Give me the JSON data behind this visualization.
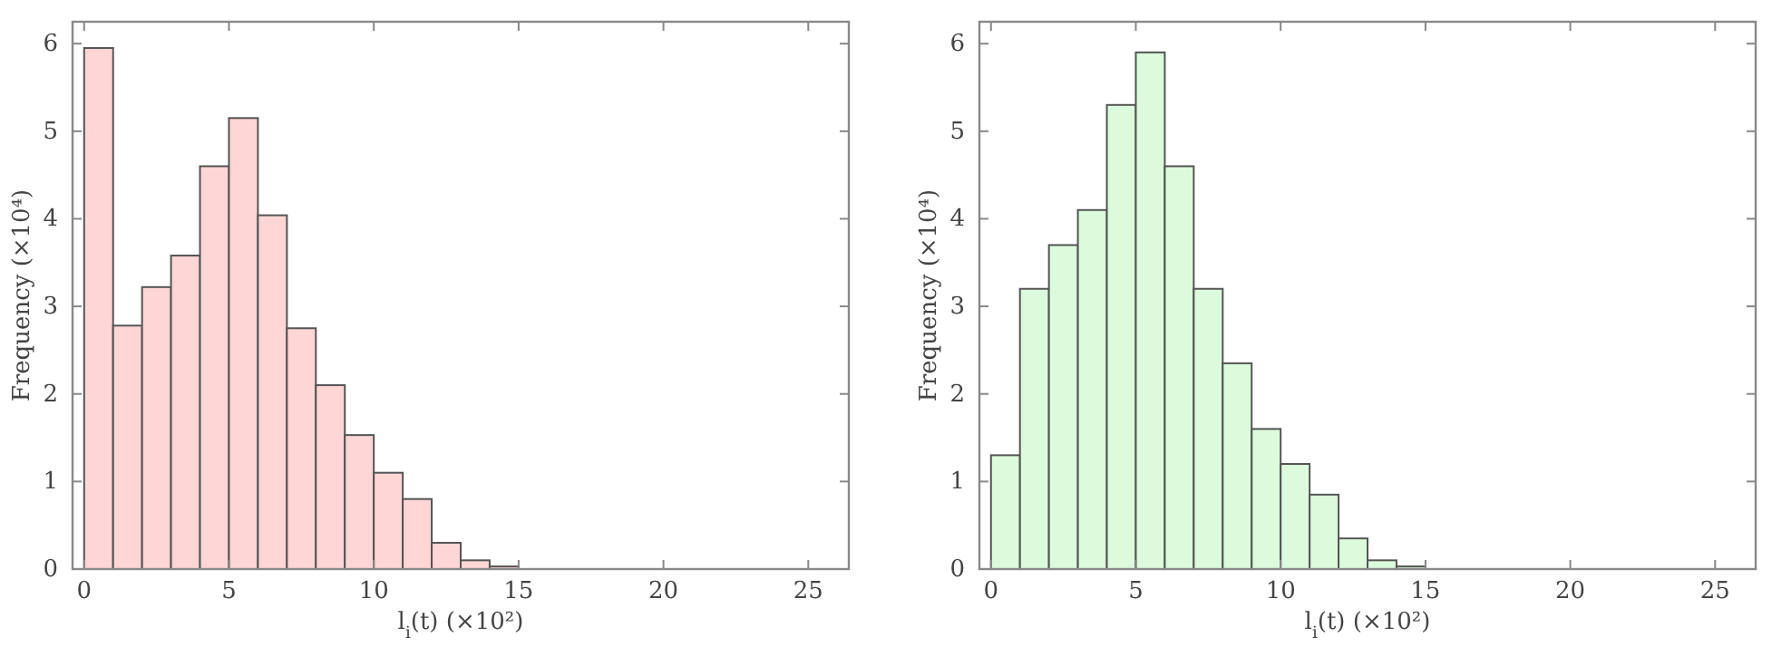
{
  "chart_data": [
    {
      "type": "histogram",
      "xlabel": "l$_{i}$(t) (×10²)",
      "ylabel": "Frequency (×10⁴)",
      "bins": [
        0,
        1,
        2,
        3,
        4,
        5,
        6,
        7,
        8,
        9,
        10,
        11,
        12,
        13,
        14,
        15
      ],
      "values": [
        5.95,
        2.78,
        3.22,
        3.58,
        4.6,
        5.15,
        4.04,
        2.75,
        2.1,
        1.53,
        1.1,
        0.8,
        0.3,
        0.1,
        0.03
      ],
      "color": "#ffd6d6",
      "xlim": [
        -0.4,
        26.4
      ],
      "xticks": [
        0,
        5,
        10,
        15,
        20,
        25
      ],
      "ylim": [
        0,
        6.25
      ],
      "yticks": [
        0,
        1,
        2,
        3,
        4,
        5,
        6
      ]
    },
    {
      "type": "histogram",
      "xlabel": "l$_{i}$(t) (×10²)",
      "ylabel": "Frequency (×10⁴)",
      "bins": [
        0,
        1,
        2,
        3,
        4,
        5,
        6,
        7,
        8,
        9,
        10,
        11,
        12,
        13,
        14,
        15
      ],
      "values": [
        1.3,
        3.2,
        3.7,
        4.1,
        5.3,
        5.9,
        4.6,
        3.2,
        2.35,
        1.6,
        1.2,
        0.85,
        0.35,
        0.1,
        0.03
      ],
      "color": "#dcfadc",
      "xlim": [
        -0.4,
        26.4
      ],
      "xticks": [
        0,
        5,
        10,
        15,
        20,
        25
      ],
      "ylim": [
        0,
        6.25
      ],
      "yticks": [
        0,
        1,
        2,
        3,
        4,
        5,
        6
      ]
    }
  ]
}
